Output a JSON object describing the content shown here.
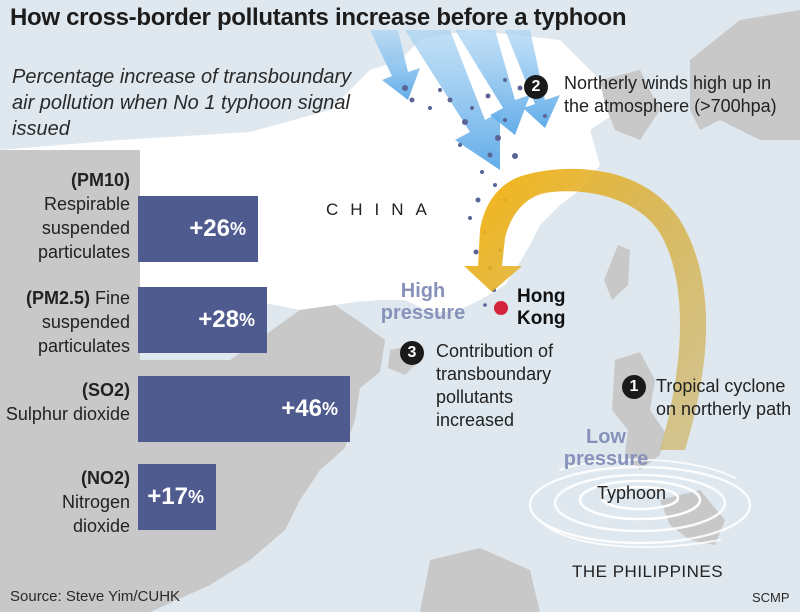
{
  "title": "How cross-border pollutants increase before a typhoon",
  "subtitle": "Percentage increase of transboundary air pollution when No 1 typhoon signal issued",
  "chart_data": {
    "type": "bar",
    "orientation": "horizontal",
    "categories": [
      "PM10",
      "PM2.5",
      "SO2",
      "NO2"
    ],
    "category_labels": [
      {
        "code": "(PM10)",
        "desc": "Respirable suspended particulates"
      },
      {
        "code": "(PM2.5)",
        "desc": "Fine suspended particulates"
      },
      {
        "code": "(SO2)",
        "desc": "Sulphur dioxide"
      },
      {
        "code": "(NO2)",
        "desc": "Nitrogen dioxide"
      }
    ],
    "values": [
      26,
      28,
      46,
      17
    ],
    "value_labels": [
      "+26",
      "+28",
      "+46",
      "+17"
    ],
    "unit": "%",
    "bar_color": "#4f5b8f"
  },
  "map": {
    "country_label": "CHINA",
    "city_label": "Hong Kong",
    "high_pressure": "High pressure",
    "low_pressure": "Low pressure",
    "typhoon_label": "Typhoon",
    "philippines_label": "THE PHILIPPINES",
    "colors": {
      "sea": "#dfe8ee",
      "land": "#ffffff",
      "other_land": "#c7c7c7",
      "path_arrow": "#f3b312",
      "wind_arrow": "#6fb3ea",
      "hk_dot": "#d2233c"
    }
  },
  "steps": [
    {
      "num": "1",
      "text": "Tropical cyclone on northerly path"
    },
    {
      "num": "2",
      "text": "Northerly winds high up in the atmosphere (>700hpa)"
    },
    {
      "num": "3",
      "text": "Contribution of transboundary pollutants increased"
    }
  ],
  "source": "Source: Steve Yim/CUHK",
  "credit": "SCMP"
}
